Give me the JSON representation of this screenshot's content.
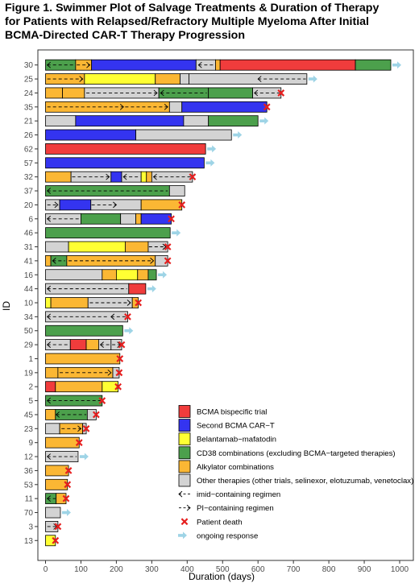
{
  "figure": {
    "title_lines": [
      "Figure 1. Swimmer Plot of Salvage Treatments & Duration of Therapy",
      "for Patients with Relapsed/Refractory Multiple Myeloma After Initial",
      "BCMA-Directed CAR-T Therapy Progression"
    ]
  },
  "chart_data": {
    "type": "bar",
    "orientation": "horizontal",
    "subtype": "swimmer",
    "xlabel": "Duration (days)",
    "ylabel": "ID",
    "xlim": [
      0,
      1000
    ],
    "xticks": [
      0,
      100,
      200,
      300,
      400,
      500,
      600,
      700,
      800,
      900,
      1000
    ],
    "colors": {
      "bcma_bispecific": "#F03C3C",
      "second_car_t": "#3434F0",
      "belantamab": "#FFFF33",
      "cd38": "#4CA04C",
      "alkylator": "#FBB734",
      "other": "#D3D3D3",
      "death": "#E61F1F",
      "ongoing": "#9ED4E6"
    },
    "legend": {
      "position": "bottom-right",
      "items": [
        {
          "label": "BCMA bispecific trial",
          "kind": "box",
          "color_key": "bcma_bispecific"
        },
        {
          "label": "Second BCMA CAR−T",
          "kind": "box",
          "color_key": "second_car_t"
        },
        {
          "label": "Belantamab−mafatodin",
          "kind": "box",
          "color_key": "belantamab"
        },
        {
          "label": "CD38 combinations (excluding BCMA−targeted therapies)",
          "kind": "box",
          "color_key": "cd38"
        },
        {
          "label": "Alkylator combinations",
          "kind": "box",
          "color_key": "alkylator"
        },
        {
          "label": "Other therapies (other trials, selinexor, elotuzumab, venetoclax)",
          "kind": "box",
          "color_key": "other"
        },
        {
          "label": "imid−containing regimen",
          "kind": "imid"
        },
        {
          "label": "PI−containing regimen",
          "kind": "pi"
        },
        {
          "label": "Patient death",
          "kind": "death"
        },
        {
          "label": "ongoing response",
          "kind": "ongoing"
        }
      ]
    },
    "patients": [
      {
        "id": "30",
        "segments": [
          [
            0,
            85,
            "cd38"
          ],
          [
            85,
            130,
            "alkylator"
          ],
          [
            130,
            425,
            "second_car_t"
          ],
          [
            425,
            480,
            "other"
          ],
          [
            480,
            493,
            "alkylator"
          ],
          [
            493,
            875,
            "bcma_bispecific"
          ],
          [
            875,
            975,
            "cd38"
          ]
        ],
        "imid": [
          [
            5,
            80
          ],
          [
            432,
            478
          ]
        ],
        "pi": [
          [
            88,
            125
          ]
        ],
        "death": false,
        "ongoing": true
      },
      {
        "id": "25",
        "segments": [
          [
            0,
            110,
            "alkylator"
          ],
          [
            110,
            310,
            "belantamab"
          ],
          [
            310,
            380,
            "alkylator"
          ],
          [
            380,
            405,
            "other"
          ],
          [
            405,
            738,
            "other"
          ]
        ],
        "imid": [
          [
            600,
            735
          ]
        ],
        "pi": [
          [
            5,
            105
          ]
        ],
        "death": false,
        "ongoing": true
      },
      {
        "id": "24",
        "segments": [
          [
            0,
            48,
            "alkylator"
          ],
          [
            48,
            110,
            "alkylator"
          ],
          [
            110,
            320,
            "other"
          ],
          [
            320,
            460,
            "cd38"
          ],
          [
            460,
            585,
            "cd38"
          ],
          [
            585,
            665,
            "other"
          ]
        ],
        "imid": [
          [
            325,
            455
          ],
          [
            590,
            660
          ]
        ],
        "pi": [
          [
            115,
            315
          ]
        ],
        "death": true,
        "ongoing": false
      },
      {
        "id": "35",
        "segments": [
          [
            0,
            350,
            "alkylator"
          ],
          [
            350,
            385,
            "other"
          ],
          [
            385,
            625,
            "second_car_t"
          ]
        ],
        "imid": [],
        "pi": [
          [
            5,
            220
          ],
          [
            225,
            345
          ]
        ],
        "death": true,
        "ongoing": false
      },
      {
        "id": "21",
        "segments": [
          [
            0,
            85,
            "other"
          ],
          [
            85,
            390,
            "second_car_t"
          ],
          [
            390,
            460,
            "other"
          ],
          [
            460,
            600,
            "cd38"
          ]
        ],
        "imid": [],
        "pi": [],
        "death": false,
        "ongoing": true
      },
      {
        "id": "26",
        "segments": [
          [
            0,
            255,
            "second_car_t"
          ],
          [
            255,
            525,
            "other"
          ]
        ],
        "imid": [],
        "pi": [],
        "death": false,
        "ongoing": true
      },
      {
        "id": "62",
        "segments": [
          [
            0,
            452,
            "bcma_bispecific"
          ]
        ],
        "imid": [],
        "pi": [],
        "death": false,
        "ongoing": true
      },
      {
        "id": "57",
        "segments": [
          [
            0,
            448,
            "second_car_t"
          ]
        ],
        "imid": [],
        "pi": [],
        "death": false,
        "ongoing": true
      },
      {
        "id": "32",
        "segments": [
          [
            0,
            72,
            "alkylator"
          ],
          [
            72,
            185,
            "other"
          ],
          [
            185,
            215,
            "second_car_t"
          ],
          [
            215,
            270,
            "other"
          ],
          [
            270,
            285,
            "belantamab"
          ],
          [
            285,
            300,
            "alkylator"
          ],
          [
            300,
            415,
            "other"
          ]
        ],
        "imid": [
          [
            220,
            268
          ],
          [
            305,
            410
          ]
        ],
        "pi": [
          [
            75,
            180
          ]
        ],
        "death": true,
        "ongoing": false
      },
      {
        "id": "37",
        "segments": [
          [
            0,
            350,
            "cd38"
          ],
          [
            350,
            393,
            "other"
          ]
        ],
        "imid": [
          [
            5,
            345
          ]
        ],
        "pi": [],
        "death": false,
        "ongoing": false
      },
      {
        "id": "20",
        "segments": [
          [
            0,
            40,
            "other"
          ],
          [
            40,
            128,
            "second_car_t"
          ],
          [
            128,
            270,
            "other"
          ],
          [
            270,
            385,
            "alkylator"
          ]
        ],
        "imid": [],
        "pi": [
          [
            5,
            35
          ],
          [
            130,
            200
          ]
        ],
        "death": true,
        "ongoing": false
      },
      {
        "id": "6",
        "segments": [
          [
            0,
            100,
            "other"
          ],
          [
            100,
            212,
            "cd38"
          ],
          [
            212,
            255,
            "other"
          ],
          [
            255,
            270,
            "alkylator"
          ],
          [
            270,
            355,
            "second_car_t"
          ]
        ],
        "imid": [
          [
            5,
            95
          ]
        ],
        "pi": [],
        "death": true,
        "ongoing": false
      },
      {
        "id": "46",
        "segments": [
          [
            0,
            352,
            "cd38"
          ]
        ],
        "imid": [],
        "pi": [],
        "death": false,
        "ongoing": true
      },
      {
        "id": "31",
        "segments": [
          [
            0,
            65,
            "other"
          ],
          [
            65,
            225,
            "belantamab"
          ],
          [
            225,
            290,
            "alkylator"
          ],
          [
            290,
            345,
            "other"
          ]
        ],
        "imid": [],
        "pi": [
          [
            292,
            340
          ]
        ],
        "death": true,
        "ongoing": false
      },
      {
        "id": "41",
        "segments": [
          [
            0,
            15,
            "alkylator"
          ],
          [
            15,
            60,
            "cd38"
          ],
          [
            60,
            310,
            "alkylator"
          ],
          [
            310,
            345,
            "other"
          ]
        ],
        "imid": [
          [
            20,
            55
          ]
        ],
        "pi": [
          [
            65,
            305
          ]
        ],
        "death": true,
        "ongoing": false
      },
      {
        "id": "16",
        "segments": [
          [
            0,
            160,
            "other"
          ],
          [
            160,
            200,
            "alkylator"
          ],
          [
            200,
            260,
            "belantamab"
          ],
          [
            260,
            290,
            "alkylator"
          ],
          [
            290,
            313,
            "cd38"
          ]
        ],
        "imid": [],
        "pi": [],
        "death": false,
        "ongoing": true
      },
      {
        "id": "44",
        "segments": [
          [
            0,
            235,
            "other"
          ],
          [
            235,
            283,
            "bcma_bispecific"
          ]
        ],
        "imid": [
          [
            5,
            230
          ]
        ],
        "pi": [],
        "death": false,
        "ongoing": true
      },
      {
        "id": "10",
        "segments": [
          [
            0,
            15,
            "belantamab"
          ],
          [
            15,
            120,
            "alkylator"
          ],
          [
            120,
            245,
            "other"
          ],
          [
            245,
            262,
            "alkylator"
          ]
        ],
        "imid": [],
        "pi": [
          [
            125,
            240
          ]
        ],
        "death": true,
        "ongoing": false
      },
      {
        "id": "34",
        "segments": [
          [
            0,
            232,
            "other"
          ]
        ],
        "imid": [
          [
            5,
            180
          ],
          [
            185,
            228
          ]
        ],
        "pi": [],
        "death": true,
        "ongoing": false
      },
      {
        "id": "50",
        "segments": [
          [
            0,
            218,
            "cd38"
          ]
        ],
        "imid": [],
        "pi": [],
        "death": false,
        "ongoing": true
      },
      {
        "id": "29",
        "segments": [
          [
            0,
            70,
            "other"
          ],
          [
            70,
            115,
            "bcma_bispecific"
          ],
          [
            115,
            150,
            "alkylator"
          ],
          [
            150,
            185,
            "other"
          ],
          [
            185,
            215,
            "other"
          ]
        ],
        "imid": [
          [
            5,
            65
          ],
          [
            155,
            180
          ]
        ],
        "pi": [
          [
            188,
            212
          ]
        ],
        "death": true,
        "ongoing": false
      },
      {
        "id": "1",
        "segments": [
          [
            0,
            210,
            "alkylator"
          ]
        ],
        "imid": [],
        "pi": [],
        "death": true,
        "ongoing": false
      },
      {
        "id": "19",
        "segments": [
          [
            0,
            35,
            "alkylator"
          ],
          [
            35,
            190,
            "alkylator"
          ],
          [
            190,
            208,
            "other"
          ]
        ],
        "imid": [],
        "pi": [
          [
            40,
            185
          ]
        ],
        "death": true,
        "ongoing": false
      },
      {
        "id": "2",
        "segments": [
          [
            0,
            28,
            "bcma_bispecific"
          ],
          [
            28,
            160,
            "alkylator"
          ],
          [
            160,
            205,
            "belantamab"
          ]
        ],
        "imid": [],
        "pi": [],
        "death": true,
        "ongoing": false
      },
      {
        "id": "5",
        "segments": [
          [
            0,
            160,
            "cd38"
          ]
        ],
        "imid": [
          [
            5,
            155
          ]
        ],
        "pi": [],
        "death": true,
        "ongoing": false
      },
      {
        "id": "45",
        "segments": [
          [
            0,
            28,
            "alkylator"
          ],
          [
            28,
            118,
            "cd38"
          ],
          [
            118,
            143,
            "other"
          ]
        ],
        "imid": [
          [
            30,
            115
          ]
        ],
        "pi": [],
        "death": true,
        "ongoing": false
      },
      {
        "id": "23",
        "segments": [
          [
            0,
            40,
            "other"
          ],
          [
            40,
            105,
            "alkylator"
          ],
          [
            105,
            115,
            "other"
          ]
        ],
        "imid": [],
        "pi": [
          [
            45,
            100
          ]
        ],
        "death": true,
        "ongoing": false
      },
      {
        "id": "9",
        "segments": [
          [
            0,
            95,
            "alkylator"
          ]
        ],
        "imid": [],
        "pi": [],
        "death": true,
        "ongoing": false
      },
      {
        "id": "12",
        "segments": [
          [
            0,
            92,
            "other"
          ]
        ],
        "imid": [
          [
            5,
            88
          ]
        ],
        "pi": [],
        "death": false,
        "ongoing": true
      },
      {
        "id": "36",
        "segments": [
          [
            0,
            65,
            "alkylator"
          ]
        ],
        "imid": [],
        "pi": [],
        "death": true,
        "ongoing": false
      },
      {
        "id": "53",
        "segments": [
          [
            0,
            62,
            "alkylator"
          ]
        ],
        "imid": [],
        "pi": [],
        "death": true,
        "ongoing": false
      },
      {
        "id": "11",
        "segments": [
          [
            0,
            30,
            "cd38"
          ],
          [
            30,
            58,
            "alkylator"
          ]
        ],
        "imid": [
          [
            5,
            28
          ]
        ],
        "pi": [],
        "death": true,
        "ongoing": false
      },
      {
        "id": "70",
        "segments": [
          [
            0,
            42,
            "other"
          ]
        ],
        "imid": [],
        "pi": [],
        "death": false,
        "ongoing": true
      },
      {
        "id": "3",
        "segments": [
          [
            0,
            35,
            "other"
          ]
        ],
        "imid": [],
        "pi": [
          [
            5,
            32
          ]
        ],
        "death": true,
        "ongoing": false
      },
      {
        "id": "13",
        "segments": [
          [
            0,
            28,
            "belantamab"
          ]
        ],
        "imid": [],
        "pi": [],
        "death": true,
        "ongoing": false
      }
    ]
  }
}
